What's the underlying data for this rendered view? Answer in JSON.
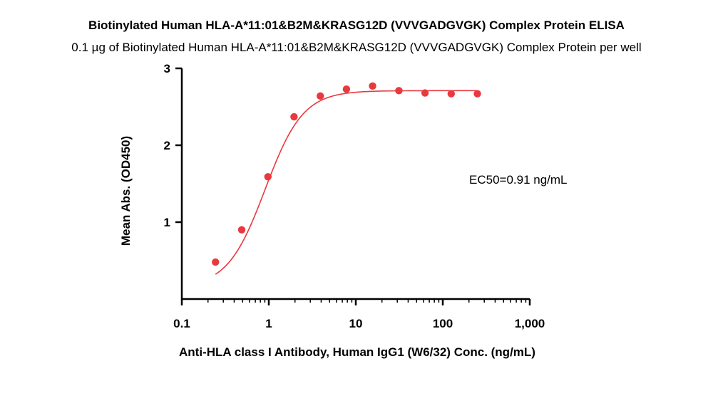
{
  "chart_data": {
    "type": "scatter",
    "title": "Biotinylated Human HLA-A*11:01&B2M&KRASG12D (VVVGADGVGK) Complex Protein ELISA",
    "subtitle": "0.1 µg of Biotinylated Human HLA-A*11:01&B2M&KRASG12D (VVVGADGVGK) Complex Protein per well",
    "xlabel": "Anti-HLA class I Antibody, Human IgG1 (W6/32) Conc. (ng/mL)",
    "ylabel": "Mean Abs. (OD450)",
    "xscale": "log",
    "xlim": [
      0.1,
      1000
    ],
    "ylim": [
      0,
      3
    ],
    "xticks": [
      0.1,
      1,
      10,
      100,
      1000
    ],
    "xtick_labels": [
      "0.1",
      "1",
      "10",
      "100",
      "1,000"
    ],
    "yticks": [
      1,
      2,
      3
    ],
    "ytick_labels": [
      "1",
      "2",
      "3"
    ],
    "grid": false,
    "annotation": "EC50=0.91 ng/mL",
    "series": [
      {
        "x": [
          0.244,
          0.488,
          0.977,
          1.95,
          3.91,
          7.81,
          15.6,
          31.3,
          62.5,
          125,
          250
        ],
        "y": [
          0.48,
          0.9,
          1.59,
          2.37,
          2.64,
          2.73,
          2.77,
          2.71,
          2.68,
          2.67,
          2.67
        ],
        "color": "#e8393f"
      }
    ],
    "fit_curve": {
      "model": "4PL",
      "bottom": 0.15,
      "top": 2.71,
      "ec50": 0.91,
      "hill": 2.0,
      "color": "#e8393f"
    }
  }
}
